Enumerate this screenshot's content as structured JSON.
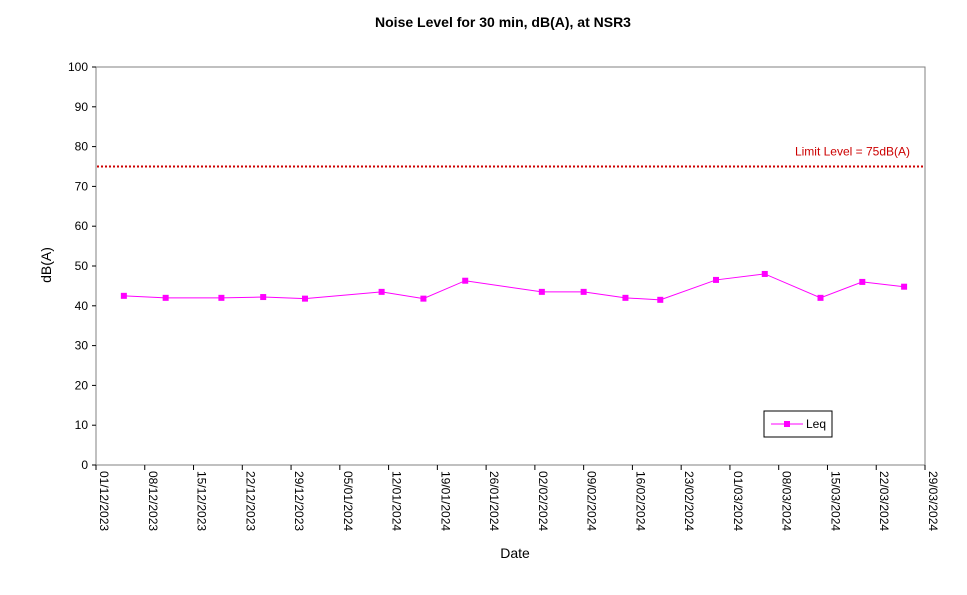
{
  "chart_data": {
    "type": "line",
    "title": "Noise Level for 30 min, dB(A), at NSR3",
    "xlabel": "Date",
    "ylabel": "dB(A)",
    "ylim": [
      0,
      100
    ],
    "yticks": [
      0,
      10,
      20,
      30,
      40,
      50,
      60,
      70,
      80,
      90,
      100
    ],
    "xlim": [
      "2023-12-01",
      "2024-03-29"
    ],
    "xticks": [
      "01/12/2023",
      "08/12/2023",
      "15/12/2023",
      "22/12/2023",
      "29/12/2023",
      "05/01/2024",
      "12/01/2024",
      "19/01/2024",
      "26/01/2024",
      "02/02/2024",
      "09/02/2024",
      "16/02/2024",
      "23/02/2024",
      "01/03/2024",
      "08/03/2024",
      "15/03/2024",
      "22/03/2024",
      "29/03/2024"
    ],
    "grid": false,
    "legend_position": "bottom-right",
    "limit_line": {
      "value": 75,
      "label": "Limit Level  = 75dB(A)",
      "color": "#cc0000",
      "style": "dotted"
    },
    "series": [
      {
        "name": "Leq",
        "color": "#ff00ff",
        "marker": "square",
        "x": [
          "2023-12-05",
          "2023-12-11",
          "2023-12-19",
          "2023-12-25",
          "2023-12-31",
          "2024-01-11",
          "2024-01-17",
          "2024-01-23",
          "2024-02-03",
          "2024-02-09",
          "2024-02-15",
          "2024-02-20",
          "2024-02-28",
          "2024-03-06",
          "2024-03-14",
          "2024-03-20",
          "2024-03-26"
        ],
        "y": [
          42.5,
          42.0,
          42.0,
          42.2,
          41.8,
          43.5,
          41.8,
          46.3,
          43.5,
          43.5,
          42.0,
          41.5,
          46.5,
          48.0,
          42.0,
          46.0,
          44.8
        ]
      }
    ]
  }
}
